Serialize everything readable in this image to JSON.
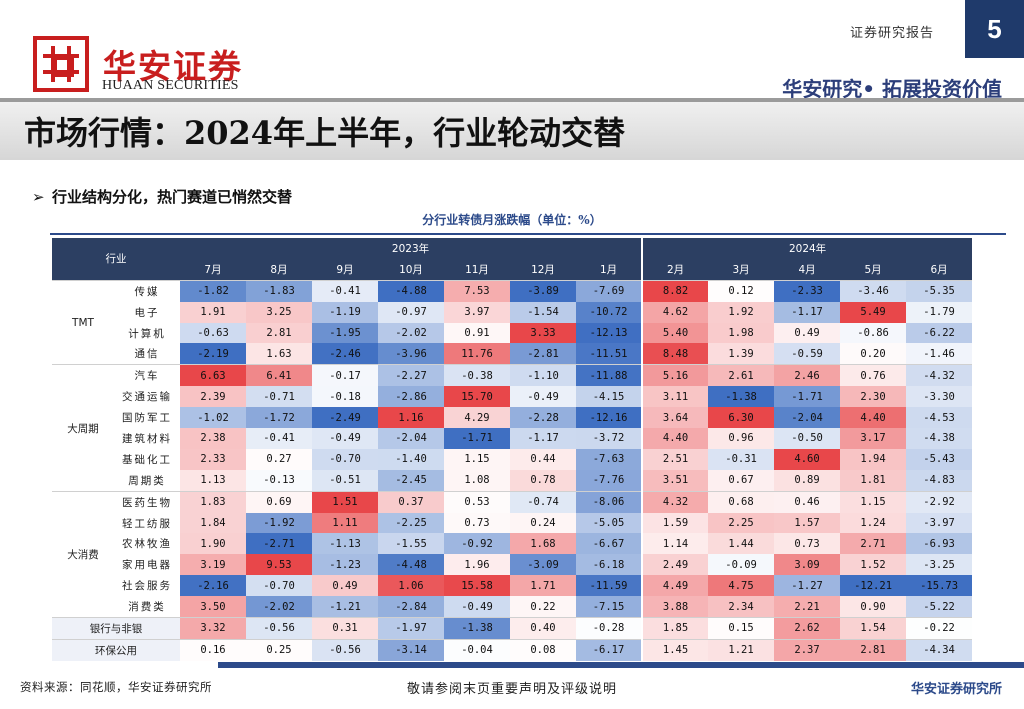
{
  "header": {
    "brand_cn": "华安证券",
    "brand_en": "HUAAN SECURITIES",
    "doc_type": "证券研究报告",
    "page_number": "5",
    "slogan": "华安研究• 拓展投资价值"
  },
  "title": "市场行情：2024年上半年，行业轮动交替",
  "bullet": "行业结构分化，热门赛道已悄然交替",
  "table": {
    "title": "分行业转债月涨跌幅（单位：%）",
    "industry_header": "行业",
    "year_2023": "2023年",
    "year_2024": "2024年",
    "months": [
      "7月",
      "8月",
      "9月",
      "10月",
      "11月",
      "12月",
      "1月",
      "2月",
      "3月",
      "4月",
      "5月",
      "6月"
    ],
    "color_scale": {
      "positive": "#e8474a",
      "negative": "#3f6fc2",
      "neutral": "#ffffff"
    },
    "groups": [
      {
        "name": "TMT",
        "rows": [
          {
            "name": "传媒",
            "values": [
              "-1.82",
              "-1.83",
              "-0.41",
              "-4.88",
              "7.53",
              "-3.89",
              "-7.69",
              "8.82",
              "0.12",
              "-2.33",
              "-3.46",
              "-5.35"
            ]
          },
          {
            "name": "电子",
            "values": [
              "1.91",
              "3.25",
              "-1.19",
              "-0.97",
              "3.97",
              "-1.54",
              "-10.72",
              "4.62",
              "1.92",
              "-1.17",
              "5.49",
              "-1.79"
            ]
          },
          {
            "name": "计算机",
            "values": [
              "-0.63",
              "2.81",
              "-1.95",
              "-2.02",
              "0.91",
              "3.33",
              "-12.13",
              "5.40",
              "1.98",
              "0.49",
              "-0.86",
              "-6.22"
            ]
          },
          {
            "name": "通信",
            "values": [
              "-2.19",
              "1.63",
              "-2.46",
              "-3.96",
              "11.76",
              "-2.81",
              "-11.51",
              "8.48",
              "1.39",
              "-0.59",
              "0.20",
              "-1.46"
            ]
          }
        ]
      },
      {
        "name": "大周期",
        "rows": [
          {
            "name": "汽车",
            "values": [
              "6.63",
              "6.41",
              "-0.17",
              "-2.27",
              "-0.38",
              "-1.10",
              "-11.88",
              "5.16",
              "2.61",
              "2.46",
              "0.76",
              "-4.32"
            ]
          },
          {
            "name": "交通运输",
            "values": [
              "2.39",
              "-0.71",
              "-0.18",
              "-2.86",
              "15.70",
              "-0.49",
              "-4.15",
              "3.11",
              "-1.38",
              "-1.71",
              "2.30",
              "-3.30"
            ]
          },
          {
            "name": "国防军工",
            "values": [
              "-1.02",
              "-1.72",
              "-2.49",
              "1.16",
              "4.29",
              "-2.28",
              "-12.16",
              "3.64",
              "6.30",
              "-2.04",
              "4.40",
              "-4.53"
            ]
          },
          {
            "name": "建筑材料",
            "values": [
              "2.38",
              "-0.41",
              "-0.49",
              "-2.04",
              "-1.71",
              "-1.17",
              "-3.72",
              "4.40",
              "0.96",
              "-0.50",
              "3.17",
              "-4.38"
            ]
          },
          {
            "name": "基础化工",
            "values": [
              "2.33",
              "0.27",
              "-0.70",
              "-1.40",
              "1.15",
              "0.44",
              "-7.63",
              "2.51",
              "-0.31",
              "4.60",
              "1.94",
              "-5.43"
            ]
          },
          {
            "name": "周期类",
            "values": [
              "1.13",
              "-0.13",
              "-0.51",
              "-2.45",
              "1.08",
              "0.78",
              "-7.76",
              "3.51",
              "0.67",
              "0.89",
              "1.81",
              "-4.83"
            ]
          }
        ]
      },
      {
        "name": "大消费",
        "rows": [
          {
            "name": "医药生物",
            "values": [
              "1.83",
              "0.69",
              "1.51",
              "0.37",
              "0.53",
              "-0.74",
              "-8.06",
              "4.32",
              "0.68",
              "0.46",
              "1.15",
              "-2.92"
            ]
          },
          {
            "name": "轻工纺服",
            "values": [
              "1.84",
              "-1.92",
              "1.11",
              "-2.25",
              "0.73",
              "0.24",
              "-5.05",
              "1.59",
              "2.25",
              "1.57",
              "1.24",
              "-3.97"
            ]
          },
          {
            "name": "农林牧渔",
            "values": [
              "1.90",
              "-2.71",
              "-1.13",
              "-1.55",
              "-0.92",
              "1.68",
              "-6.67",
              "1.14",
              "1.44",
              "0.73",
              "2.71",
              "-6.93"
            ]
          },
          {
            "name": "家用电器",
            "values": [
              "3.19",
              "9.53",
              "-1.23",
              "-4.48",
              "1.96",
              "-3.09",
              "-6.18",
              "2.49",
              "-0.09",
              "3.09",
              "1.52",
              "-3.25"
            ]
          },
          {
            "name": "社会服务",
            "values": [
              "-2.16",
              "-0.70",
              "0.49",
              "1.06",
              "15.58",
              "1.71",
              "-11.59",
              "4.49",
              "4.75",
              "-1.27",
              "-12.21",
              "-15.73"
            ]
          },
          {
            "name": "消费类",
            "values": [
              "3.50",
              "-2.02",
              "-1.21",
              "-2.84",
              "-0.49",
              "0.22",
              "-7.15",
              "3.88",
              "2.34",
              "2.21",
              "0.90",
              "-5.22"
            ]
          }
        ]
      },
      {
        "name": "银行与非银",
        "single": true,
        "values": [
          "3.32",
          "-0.56",
          "0.31",
          "-1.97",
          "-1.38",
          "0.40",
          "-0.28",
          "1.85",
          "0.15",
          "2.62",
          "1.54",
          "-0.22"
        ]
      },
      {
        "name": "环保公用",
        "single": true,
        "values": [
          "0.16",
          "0.25",
          "-0.56",
          "-3.14",
          "-0.04",
          "0.08",
          "-6.17",
          "1.45",
          "1.21",
          "2.37",
          "2.81",
          "-4.34"
        ]
      }
    ]
  },
  "footer": {
    "source": "资料来源：同花顺，华安证券研究所",
    "disclaimer": "敬请参阅末页重要声明及评级说明",
    "brand": "华安证券研究所"
  }
}
